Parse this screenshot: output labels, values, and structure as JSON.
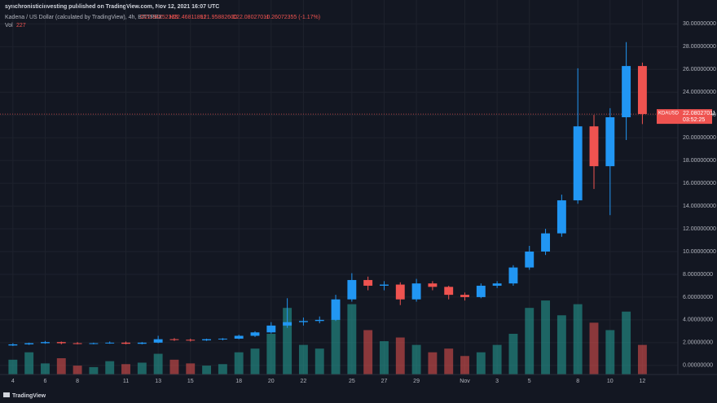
{
  "header": {
    "publisher": "synchronisticinvesting published on TradingView.com, Nov 12, 2021 16:07 UTC",
    "symbol": "Kadena / US Dollar (calculated by TradingView), 4h, BITTREX",
    "open": "O22.34252328",
    "high": "H22.46811891",
    "low": "L21.95882600",
    "close": "C22.08027011",
    "change": "-0.26072355 (-1.17%)",
    "volume_label": "Vol",
    "volume_value": "227"
  },
  "footer": {
    "brand": "TradingView"
  },
  "chart_data": {
    "type": "candlestick",
    "x": [
      0,
      1,
      2,
      3,
      4,
      5,
      6,
      7,
      8,
      9,
      10,
      11,
      12,
      13,
      14,
      15,
      16,
      17,
      18,
      19,
      20,
      21,
      22,
      23,
      24,
      25,
      26,
      27,
      28,
      29,
      30,
      31,
      32,
      33,
      34,
      35,
      36,
      37,
      38,
      39
    ],
    "open": [
      1.75,
      1.85,
      1.95,
      2.05,
      1.95,
      1.9,
      1.95,
      2.0,
      1.9,
      2.0,
      2.3,
      2.25,
      2.2,
      2.3,
      2.35,
      2.6,
      2.9,
      3.5,
      3.8,
      3.9,
      4.0,
      5.8,
      7.5,
      7.0,
      7.1,
      5.8,
      7.2,
      6.9,
      6.2,
      6.0,
      7.0,
      7.2,
      8.6,
      10.0,
      11.6,
      14.5,
      21.0,
      17.5,
      21.8,
      26.3
    ],
    "high": [
      1.95,
      2.0,
      2.15,
      2.1,
      2.05,
      2.0,
      2.1,
      2.1,
      2.05,
      2.6,
      2.4,
      2.35,
      2.35,
      2.4,
      2.7,
      3.0,
      3.8,
      5.9,
      4.2,
      4.3,
      6.2,
      8.1,
      7.8,
      7.4,
      7.3,
      7.6,
      7.4,
      7.0,
      6.4,
      7.2,
      7.4,
      8.8,
      10.5,
      12.0,
      15.0,
      26.1,
      22.0,
      22.6,
      28.4,
      26.6
    ],
    "low": [
      1.7,
      1.8,
      1.9,
      1.85,
      1.85,
      1.85,
      1.9,
      1.85,
      1.85,
      1.95,
      2.15,
      2.1,
      2.15,
      2.2,
      2.3,
      2.5,
      2.8,
      3.3,
      3.5,
      3.7,
      3.9,
      5.6,
      6.6,
      6.6,
      5.3,
      5.6,
      6.6,
      5.8,
      5.7,
      5.9,
      6.8,
      7.0,
      8.4,
      9.7,
      11.3,
      14.2,
      15.5,
      13.2,
      19.8,
      21.2
    ],
    "close": [
      1.85,
      1.95,
      2.05,
      1.95,
      1.9,
      1.95,
      2.0,
      1.9,
      2.0,
      2.3,
      2.25,
      2.2,
      2.3,
      2.35,
      2.6,
      2.9,
      3.5,
      3.8,
      3.9,
      4.0,
      5.8,
      7.5,
      7.0,
      7.1,
      5.8,
      7.2,
      6.9,
      6.2,
      6.0,
      7.0,
      7.2,
      8.6,
      10.0,
      11.6,
      14.5,
      21.0,
      17.5,
      21.8,
      26.3,
      22.08027011
    ],
    "volume": [
      20,
      30,
      15,
      22,
      12,
      10,
      18,
      14,
      16,
      28,
      20,
      15,
      12,
      14,
      30,
      35,
      55,
      90,
      40,
      35,
      75,
      95,
      60,
      45,
      50,
      40,
      30,
      35,
      25,
      30,
      40,
      55,
      90,
      100,
      80,
      95,
      70,
      60,
      85,
      40
    ],
    "vol_ylim": [
      0,
      110
    ],
    "xlim": [
      -0.8,
      41.2
    ],
    "xticks": [
      {
        "value": 0,
        "label": "4"
      },
      {
        "value": 2,
        "label": "6"
      },
      {
        "value": 4,
        "label": "8"
      },
      {
        "value": 7,
        "label": "11"
      },
      {
        "value": 9,
        "label": "13"
      },
      {
        "value": 11,
        "label": "15"
      },
      {
        "value": 14,
        "label": "18"
      },
      {
        "value": 16,
        "label": "20"
      },
      {
        "value": 18,
        "label": "22"
      },
      {
        "value": 21,
        "label": "25"
      },
      {
        "value": 23,
        "label": "27"
      },
      {
        "value": 25,
        "label": "29"
      },
      {
        "value": 28,
        "label": "Nov"
      },
      {
        "value": 30,
        "label": "3"
      },
      {
        "value": 32,
        "label": "5"
      },
      {
        "value": 35,
        "label": "8"
      },
      {
        "value": 37,
        "label": "10"
      },
      {
        "value": 39,
        "label": "12"
      }
    ],
    "ylim": [
      -0.8,
      32.1
    ],
    "yticks": [
      {
        "value": 0,
        "label": "0.00000000"
      },
      {
        "value": 2,
        "label": "2.00000000"
      },
      {
        "value": 4,
        "label": "4.00000000"
      },
      {
        "value": 6,
        "label": "6.00000000"
      },
      {
        "value": 8,
        "label": "8.00000000"
      },
      {
        "value": 10,
        "label": "10.00000000"
      },
      {
        "value": 12,
        "label": "12.00000000"
      },
      {
        "value": 14,
        "label": "14.00000000"
      },
      {
        "value": 16,
        "label": "16.00000000"
      },
      {
        "value": 18,
        "label": "18.00000000"
      },
      {
        "value": 20,
        "label": "20.00000000"
      },
      {
        "value": 22,
        "label": "22.00000000"
      },
      {
        "value": 24,
        "label": "24.00000000"
      },
      {
        "value": 26,
        "label": "26.00000000"
      },
      {
        "value": 28,
        "label": "28.00000000"
      },
      {
        "value": 30,
        "label": "30.00000000"
      }
    ],
    "up_color": "#2196f3",
    "down_color": "#ef5350",
    "volume_up_color": "#26a69a",
    "volume_down_color": "#ef5350",
    "last_price": {
      "symbol": "KDAUSD",
      "price": "22.08027011",
      "countdown": "03:52:25"
    }
  }
}
